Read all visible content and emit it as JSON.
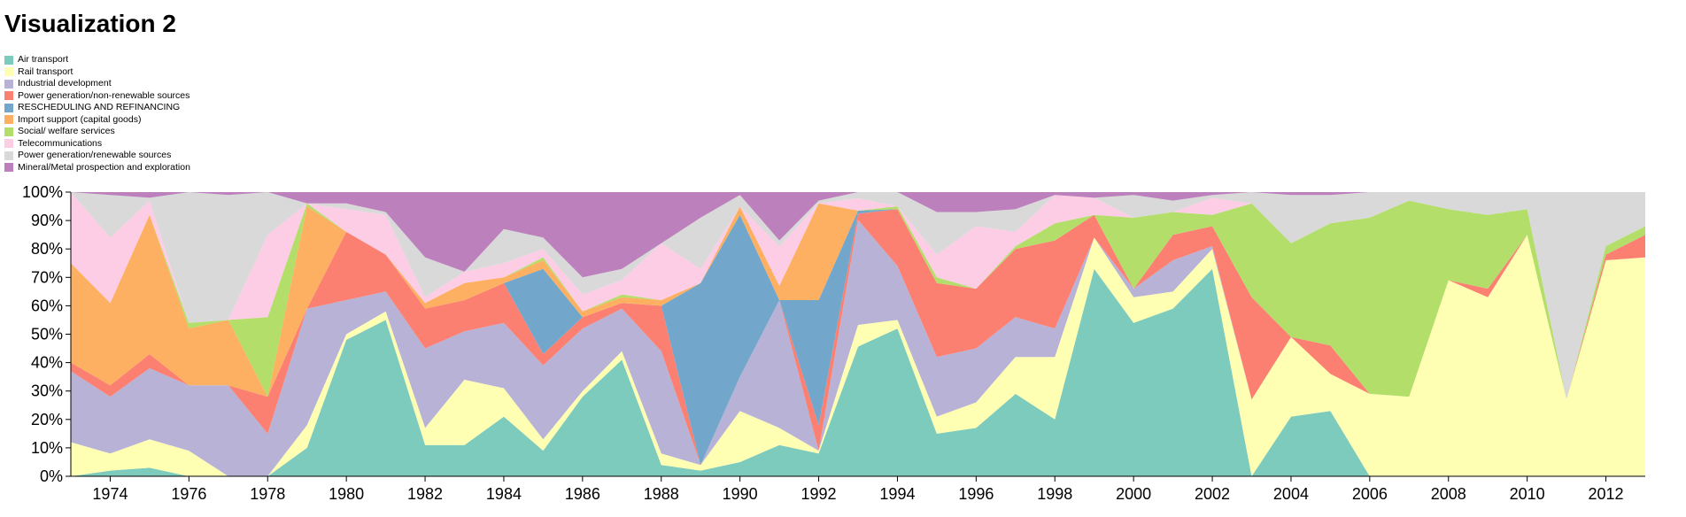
{
  "page": {
    "title": "Visualization 2"
  },
  "chart_data": {
    "type": "area",
    "stacked": true,
    "normalized": true,
    "title": "",
    "xlabel": "",
    "ylabel": "",
    "ylim": [
      0,
      100
    ],
    "xlim": [
      1973,
      2013
    ],
    "y_ticks": [
      "0%",
      "10%",
      "20%",
      "30%",
      "40%",
      "50%",
      "60%",
      "70%",
      "80%",
      "90%",
      "100%"
    ],
    "x_ticks": [
      "1974",
      "1976",
      "1978",
      "1980",
      "1982",
      "1984",
      "1986",
      "1988",
      "1990",
      "1992",
      "1994",
      "1996",
      "1998",
      "2000",
      "2002",
      "2004",
      "2006",
      "2008",
      "2010",
      "2012"
    ],
    "legend_position": "top-left",
    "x": [
      1973,
      1974,
      1975,
      1976,
      1977,
      1978,
      1979,
      1980,
      1981,
      1982,
      1983,
      1984,
      1985,
      1986,
      1987,
      1988,
      1989,
      1990,
      1991,
      1992,
      1993,
      1994,
      1995,
      1996,
      1997,
      1998,
      1999,
      2000,
      2001,
      2002,
      2003,
      2004,
      2005,
      2006,
      2007,
      2008,
      2009,
      2010,
      2011,
      2012,
      2013
    ],
    "series": [
      {
        "name": "Air transport",
        "color": "#7ccbbd",
        "values": [
          0,
          2,
          3,
          0,
          0,
          0,
          10,
          48,
          55,
          11,
          11,
          21,
          9,
          28,
          41,
          4,
          2,
          5,
          11,
          8,
          42,
          52,
          15,
          17,
          29,
          20,
          73,
          54,
          59,
          73,
          0,
          21,
          23,
          0,
          0,
          0,
          0,
          0,
          0,
          0,
          0
        ]
      },
      {
        "name": "Rail transport",
        "color": "#ffffb3",
        "values": [
          12,
          6,
          10,
          9,
          0,
          0,
          8,
          2,
          3,
          6,
          23,
          10,
          4,
          2,
          3,
          4,
          2,
          18,
          6,
          1,
          7,
          3,
          6,
          9,
          13,
          22,
          11,
          9,
          6,
          7,
          27,
          28,
          13,
          29,
          28,
          69,
          63,
          85,
          27,
          76,
          77
        ]
      },
      {
        "name": "Industrial development",
        "color": "#b8b2d6",
        "values": [
          25,
          20,
          25,
          23,
          32,
          15,
          41,
          12,
          7,
          28,
          17,
          23,
          26,
          22,
          15,
          36,
          0,
          12,
          45,
          0,
          34,
          19,
          21,
          19,
          14,
          10,
          0,
          3,
          11,
          1,
          0,
          0,
          0,
          0,
          0,
          0,
          0,
          0,
          0,
          0,
          0
        ]
      },
      {
        "name": "Power generation/non-renewable sources",
        "color": "#fc8072",
        "values": [
          3,
          4,
          5,
          0,
          0,
          13,
          0,
          24,
          13,
          14,
          11,
          14,
          4,
          4,
          2,
          16,
          0,
          0,
          0,
          9,
          2,
          20,
          26,
          21,
          24,
          31,
          8,
          0,
          9,
          7,
          36,
          0,
          10,
          0,
          0,
          0,
          3,
          0,
          0,
          2,
          8
        ]
      },
      {
        "name": "RESCHEDULING AND REFINANCING",
        "color": "#72a7cb",
        "values": [
          0,
          0,
          0,
          0,
          0,
          0,
          0,
          0,
          0,
          0,
          0,
          0,
          30,
          0,
          0,
          0,
          64,
          57,
          0,
          44,
          1,
          0,
          0,
          0,
          0,
          0,
          0,
          0,
          0,
          0,
          0,
          0,
          0,
          0,
          0,
          0,
          0,
          0,
          0,
          0,
          0
        ]
      },
      {
        "name": "Import support (capital goods)",
        "color": "#fdb062",
        "values": [
          35,
          29,
          49,
          20,
          23,
          0,
          36,
          0,
          0,
          2,
          6,
          2,
          3,
          2,
          2,
          2,
          0,
          3,
          5,
          34,
          0,
          0,
          0,
          0,
          0,
          0,
          0,
          0,
          0,
          0,
          0,
          0,
          0,
          0,
          0,
          0,
          0,
          0,
          0,
          0,
          0
        ]
      },
      {
        "name": "Social/ welfare services",
        "color": "#b3de6a",
        "values": [
          0,
          0,
          0,
          2,
          0,
          28,
          1,
          0,
          0,
          0,
          0,
          0,
          1,
          0,
          1,
          0,
          0,
          0,
          0,
          0,
          0,
          1,
          2,
          0,
          1,
          6,
          0,
          25,
          8,
          4,
          33,
          33,
          43,
          62,
          69,
          25,
          26,
          9,
          0,
          3,
          3
        ]
      },
      {
        "name": "Telecommunications",
        "color": "#fccde4",
        "values": [
          25,
          23,
          5,
          0,
          0,
          29,
          0,
          8,
          14,
          2,
          4,
          5,
          3,
          6,
          5,
          20,
          5,
          0,
          14,
          0,
          4,
          0,
          8,
          22,
          5,
          10,
          6,
          0,
          0,
          6,
          0,
          0,
          0,
          0,
          0,
          0,
          0,
          0,
          0,
          0,
          0
        ]
      },
      {
        "name": "Power generation/renewable sources",
        "color": "#d9d9d9",
        "values": [
          0,
          15,
          1,
          46,
          44,
          15,
          0,
          2,
          1,
          14,
          0,
          12,
          4,
          6,
          4,
          0,
          18,
          4,
          2,
          1,
          2,
          5,
          15,
          5,
          8,
          0,
          0,
          8,
          4,
          1,
          4,
          17,
          10,
          9,
          3,
          6,
          8,
          6,
          73,
          19,
          12
        ]
      },
      {
        "name": "Mineral/Metal prospection and exploration",
        "color": "#bc80bc",
        "values": [
          0,
          1,
          2,
          0,
          1,
          0,
          4,
          4,
          7,
          23,
          28,
          13,
          16,
          30,
          27,
          18,
          9,
          1,
          17,
          3,
          0,
          0,
          7,
          7,
          6,
          1,
          2,
          1,
          3,
          1,
          0,
          1,
          1,
          0,
          0,
          0,
          0,
          0,
          0,
          0,
          0
        ]
      }
    ]
  }
}
